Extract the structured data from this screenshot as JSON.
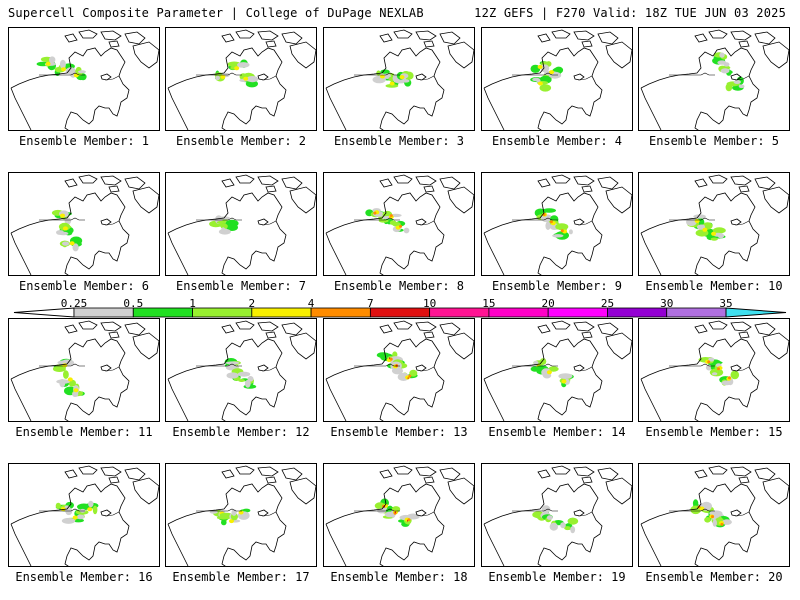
{
  "header": {
    "title": "Supercell Composite Parameter | College of DuPage NEXLAB",
    "run_info": "12Z GEFS | F270 Valid: 18Z TUE JUN 03 2025"
  },
  "member_label_prefix": "Ensemble Member:",
  "selected_member": 20,
  "members": [
    {
      "id": 1,
      "label": "Ensemble Member: 1"
    },
    {
      "id": 2,
      "label": "Ensemble Member: 2"
    },
    {
      "id": 3,
      "label": "Ensemble Member: 3"
    },
    {
      "id": 4,
      "label": "Ensemble Member: 4"
    },
    {
      "id": 5,
      "label": "Ensemble Member: 5"
    },
    {
      "id": 6,
      "label": "Ensemble Member: 6"
    },
    {
      "id": 7,
      "label": "Ensemble Member: 7"
    },
    {
      "id": 8,
      "label": "Ensemble Member: 8"
    },
    {
      "id": 9,
      "label": "Ensemble Member: 9"
    },
    {
      "id": 10,
      "label": "Ensemble Member: 10"
    },
    {
      "id": 11,
      "label": "Ensemble Member: 11"
    },
    {
      "id": 12,
      "label": "Ensemble Member: 12"
    },
    {
      "id": 13,
      "label": "Ensemble Member: 13"
    },
    {
      "id": 14,
      "label": "Ensemble Member: 14"
    },
    {
      "id": 15,
      "label": "Ensemble Member: 15"
    },
    {
      "id": 16,
      "label": "Ensemble Member: 16"
    },
    {
      "id": 17,
      "label": "Ensemble Member: 17"
    },
    {
      "id": 18,
      "label": "Ensemble Member: 18"
    },
    {
      "id": 19,
      "label": "Ensemble Member: 19"
    },
    {
      "id": 20,
      "label": "Ensemble Member: 20"
    }
  ],
  "colorbar": {
    "ticks": [
      "0.25",
      "0.5",
      "1",
      "2",
      "4",
      "7",
      "10",
      "15",
      "20",
      "25",
      "30",
      "35"
    ],
    "colors": [
      "#d0d0d0",
      "#22e022",
      "#98f030",
      "#f8f000",
      "#ff8c00",
      "#e01010",
      "#ff1493",
      "#ff00c8",
      "#ff00ff",
      "#9400d3",
      "#b070e0",
      "#40e0f0"
    ],
    "below_color": "#ffffff"
  }
}
